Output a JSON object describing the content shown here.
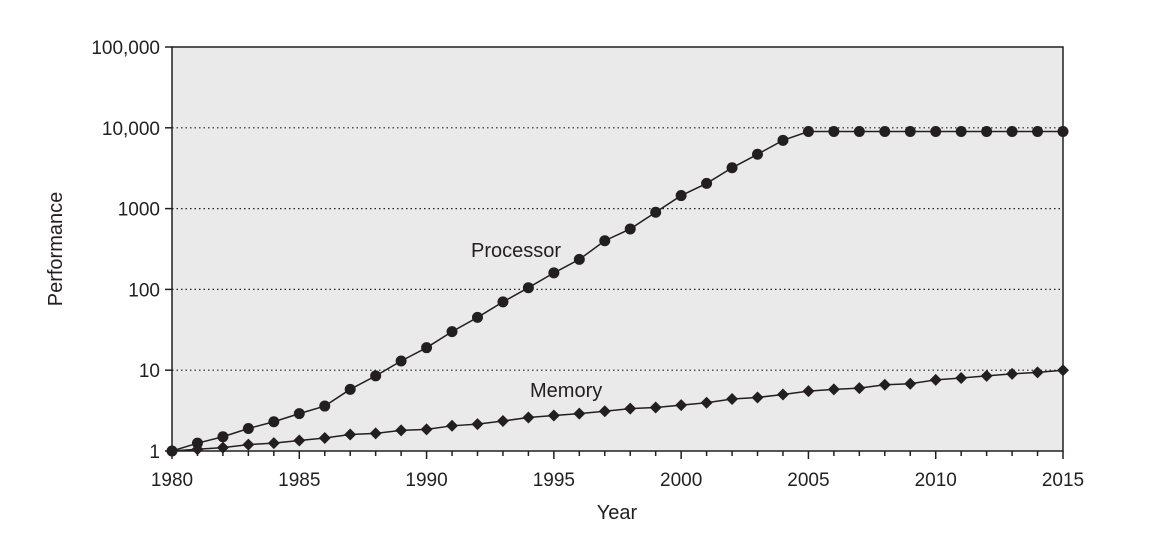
{
  "chart_data": {
    "type": "line",
    "title": "",
    "xlabel": "Year",
    "ylabel": "Performance",
    "xlim": [
      1980,
      2015
    ],
    "ylim": [
      1,
      100000
    ],
    "yscale": "log",
    "x_ticks": [
      1980,
      1985,
      1990,
      1995,
      2000,
      2005,
      2010,
      2015
    ],
    "x_tick_labels": [
      "1980",
      "1985",
      "1990",
      "1995",
      "2000",
      "2005",
      "2010",
      "2015"
    ],
    "y_ticks": [
      1,
      10,
      100,
      1000,
      10000,
      100000
    ],
    "y_tick_labels": [
      "1",
      "10",
      "100",
      "1000",
      "10,000",
      "100,000"
    ],
    "grid": "horizontal dotted",
    "background": "#eaeaeb",
    "x": [
      1980,
      1981,
      1982,
      1983,
      1984,
      1985,
      1986,
      1987,
      1988,
      1989,
      1990,
      1991,
      1992,
      1993,
      1994,
      1995,
      1996,
      1997,
      1998,
      1999,
      2000,
      2001,
      2002,
      2003,
      2004,
      2005,
      2006,
      2007,
      2008,
      2009,
      2010,
      2011,
      2012,
      2013,
      2014,
      2015
    ],
    "series": [
      {
        "name": "Processor",
        "marker": "circle",
        "color": "#231f20",
        "values": [
          1,
          1.25,
          1.5,
          1.9,
          2.3,
          2.9,
          3.6,
          5.8,
          8.5,
          13,
          19,
          30,
          45,
          70,
          105,
          160,
          235,
          400,
          560,
          900,
          1450,
          2050,
          3200,
          4700,
          7000,
          9000,
          9000,
          9000,
          9000,
          9000,
          9000,
          9000,
          9000,
          9000,
          9000,
          9000
        ]
      },
      {
        "name": "Memory",
        "marker": "diamond",
        "color": "#231f20",
        "values": [
          1,
          1.05,
          1.1,
          1.2,
          1.25,
          1.35,
          1.45,
          1.6,
          1.65,
          1.8,
          1.85,
          2.05,
          2.15,
          2.35,
          2.6,
          2.75,
          2.9,
          3.1,
          3.35,
          3.45,
          3.7,
          3.95,
          4.4,
          4.6,
          5,
          5.5,
          5.8,
          6,
          6.6,
          6.8,
          7.6,
          8,
          8.5,
          9,
          9.4,
          10
        ]
      }
    ]
  }
}
